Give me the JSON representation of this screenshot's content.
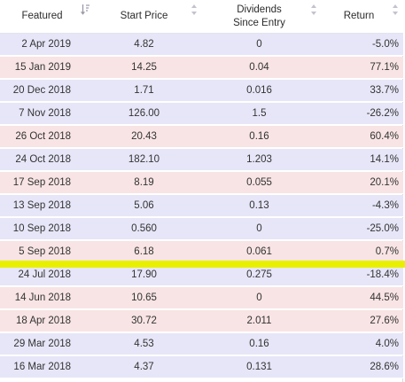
{
  "colors": {
    "row_blue": "#e6e6f8",
    "row_pink": "#f8e4e4",
    "highlight": "#e8f000"
  },
  "header": {
    "featured": "Featured",
    "start_price": "Start Price",
    "dividends_line1": "Dividends",
    "dividends_line2": "Since Entry",
    "return": "Return"
  },
  "rows": [
    {
      "date": "2 Apr 2019",
      "start": "4.82",
      "div": "0",
      "ret": "-5.0%",
      "tone": "blue"
    },
    {
      "date": "15 Jan 2019",
      "start": "14.25",
      "div": "0.04",
      "ret": "77.1%",
      "tone": "pink"
    },
    {
      "date": "20 Dec 2018",
      "start": "1.71",
      "div": "0.016",
      "ret": "33.7%",
      "tone": "blue"
    },
    {
      "date": "7 Nov 2018",
      "start": "126.00",
      "div": "1.5",
      "ret": "-26.2%",
      "tone": "blue"
    },
    {
      "date": "26 Oct 2018",
      "start": "20.43",
      "div": "0.16",
      "ret": "60.4%",
      "tone": "pink"
    },
    {
      "date": "24 Oct 2018",
      "start": "182.10",
      "div": "1.203",
      "ret": "14.1%",
      "tone": "blue"
    },
    {
      "date": "17 Sep 2018",
      "start": "8.19",
      "div": "0.055",
      "ret": "20.1%",
      "tone": "pink"
    },
    {
      "date": "13 Sep 2018",
      "start": "5.06",
      "div": "0.13",
      "ret": "-4.3%",
      "tone": "blue"
    },
    {
      "date": "10 Sep 2018",
      "start": "0.560",
      "div": "0",
      "ret": "-25.0%",
      "tone": "blue"
    },
    {
      "date": "5 Sep 2018",
      "start": "6.18",
      "div": "0.061",
      "ret": "0.7%",
      "tone": "pink"
    },
    {
      "date": "24 Jul 2018",
      "start": "17.90",
      "div": "0.275",
      "ret": "-18.4%",
      "tone": "blue"
    },
    {
      "date": "14 Jun 2018",
      "start": "10.65",
      "div": "0",
      "ret": "44.5%",
      "tone": "pink"
    },
    {
      "date": "18 Apr 2018",
      "start": "30.72",
      "div": "2.011",
      "ret": "27.6%",
      "tone": "pink"
    },
    {
      "date": "29 Mar 2018",
      "start": "4.53",
      "div": "0.16",
      "ret": "4.0%",
      "tone": "blue"
    },
    {
      "date": "16 Mar 2018",
      "start": "4.37",
      "div": "0.131",
      "ret": "28.6%",
      "tone": "blue"
    }
  ]
}
